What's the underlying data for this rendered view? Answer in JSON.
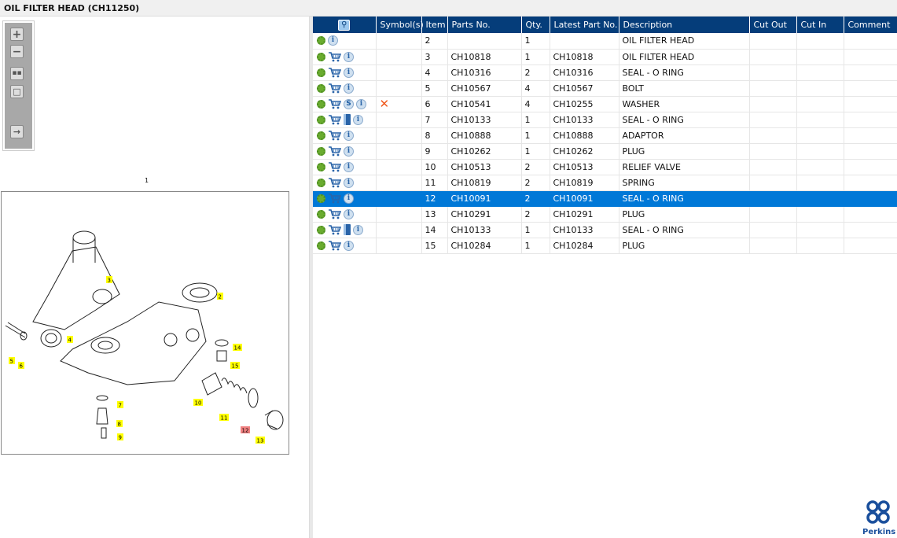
{
  "title": "OIL FILTER HEAD (CH11250)",
  "toolbox": {
    "buttons": [
      "zoom-in",
      "zoom-out",
      "fit-all",
      "fit-box",
      "toggle-list"
    ]
  },
  "drawing": {
    "assembly_label": "1",
    "callouts": [
      {
        "n": "3"
      },
      {
        "n": "2"
      },
      {
        "n": "4"
      },
      {
        "n": "14"
      },
      {
        "n": "5"
      },
      {
        "n": "6"
      },
      {
        "n": "15"
      },
      {
        "n": "7"
      },
      {
        "n": "10"
      },
      {
        "n": "11"
      },
      {
        "n": "8"
      },
      {
        "n": "12",
        "highlighted": true
      },
      {
        "n": "13"
      },
      {
        "n": "9"
      }
    ]
  },
  "table": {
    "columns": [
      "",
      "Symbol(s)",
      "Item",
      "Parts No.",
      "Qty.",
      "Latest Part No.",
      "Description",
      "Cut Out",
      "Cut In",
      "Comment"
    ],
    "rows": [
      {
        "icons": [
          "gear",
          "info"
        ],
        "symbol": "",
        "item": "2",
        "part": "",
        "qty": "1",
        "latest": "",
        "desc": "OIL FILTER HEAD",
        "cut_out": "",
        "cut_in": "",
        "comment": ""
      },
      {
        "icons": [
          "gear",
          "cart",
          "info"
        ],
        "symbol": "",
        "item": "3",
        "part": "CH10818",
        "qty": "1",
        "latest": "CH10818",
        "desc": "OIL FILTER HEAD",
        "cut_out": "",
        "cut_in": "",
        "comment": ""
      },
      {
        "icons": [
          "gear",
          "cart",
          "info"
        ],
        "symbol": "",
        "item": "4",
        "part": "CH10316",
        "qty": "2",
        "latest": "CH10316",
        "desc": "SEAL - O RING",
        "cut_out": "",
        "cut_in": "",
        "comment": ""
      },
      {
        "icons": [
          "gear",
          "cart",
          "info"
        ],
        "symbol": "",
        "item": "5",
        "part": "CH10567",
        "qty": "4",
        "latest": "CH10567",
        "desc": "BOLT",
        "cut_out": "",
        "cut_in": "",
        "comment": ""
      },
      {
        "icons": [
          "gear",
          "cart",
          "s",
          "info"
        ],
        "symbol": "✕",
        "item": "6",
        "part": "CH10541",
        "qty": "4",
        "latest": "CH10255",
        "desc": "WASHER",
        "cut_out": "",
        "cut_in": "",
        "comment": ""
      },
      {
        "icons": [
          "gear",
          "cart",
          "book",
          "info"
        ],
        "symbol": "",
        "item": "7",
        "part": "CH10133",
        "qty": "1",
        "latest": "CH10133",
        "desc": "SEAL - O RING",
        "cut_out": "",
        "cut_in": "",
        "comment": ""
      },
      {
        "icons": [
          "gear",
          "cart",
          "info"
        ],
        "symbol": "",
        "item": "8",
        "part": "CH10888",
        "qty": "1",
        "latest": "CH10888",
        "desc": "ADAPTOR",
        "cut_out": "",
        "cut_in": "",
        "comment": ""
      },
      {
        "icons": [
          "gear",
          "cart",
          "info"
        ],
        "symbol": "",
        "item": "9",
        "part": "CH10262",
        "qty": "1",
        "latest": "CH10262",
        "desc": "PLUG",
        "cut_out": "",
        "cut_in": "",
        "comment": ""
      },
      {
        "icons": [
          "gear",
          "cart",
          "info"
        ],
        "symbol": "",
        "item": "10",
        "part": "CH10513",
        "qty": "2",
        "latest": "CH10513",
        "desc": "RELIEF VALVE",
        "cut_out": "",
        "cut_in": "",
        "comment": ""
      },
      {
        "icons": [
          "gear",
          "cart",
          "info"
        ],
        "symbol": "",
        "item": "11",
        "part": "CH10819",
        "qty": "2",
        "latest": "CH10819",
        "desc": "SPRING",
        "cut_out": "",
        "cut_in": "",
        "comment": ""
      },
      {
        "icons": [
          "gear",
          "cart",
          "info"
        ],
        "symbol": "",
        "item": "12",
        "part": "CH10091",
        "qty": "2",
        "latest": "CH10091",
        "desc": "SEAL - O RING",
        "cut_out": "",
        "cut_in": "",
        "comment": "",
        "selected": true
      },
      {
        "icons": [
          "gear",
          "cart",
          "info"
        ],
        "symbol": "",
        "item": "13",
        "part": "CH10291",
        "qty": "2",
        "latest": "CH10291",
        "desc": "PLUG",
        "cut_out": "",
        "cut_in": "",
        "comment": ""
      },
      {
        "icons": [
          "gear",
          "cart",
          "book",
          "info"
        ],
        "symbol": "",
        "item": "14",
        "part": "CH10133",
        "qty": "1",
        "latest": "CH10133",
        "desc": "SEAL - O RING",
        "cut_out": "",
        "cut_in": "",
        "comment": ""
      },
      {
        "icons": [
          "gear",
          "cart",
          "info"
        ],
        "symbol": "",
        "item": "15",
        "part": "CH10284",
        "qty": "1",
        "latest": "CH10284",
        "desc": "PLUG",
        "cut_out": "",
        "cut_in": "",
        "comment": ""
      }
    ]
  },
  "logo": {
    "name": "Perkins"
  },
  "colors": {
    "header": "#053d7a",
    "selected": "#0078d7",
    "callout": "#ffff00",
    "callout_highlight": "#f08080"
  }
}
